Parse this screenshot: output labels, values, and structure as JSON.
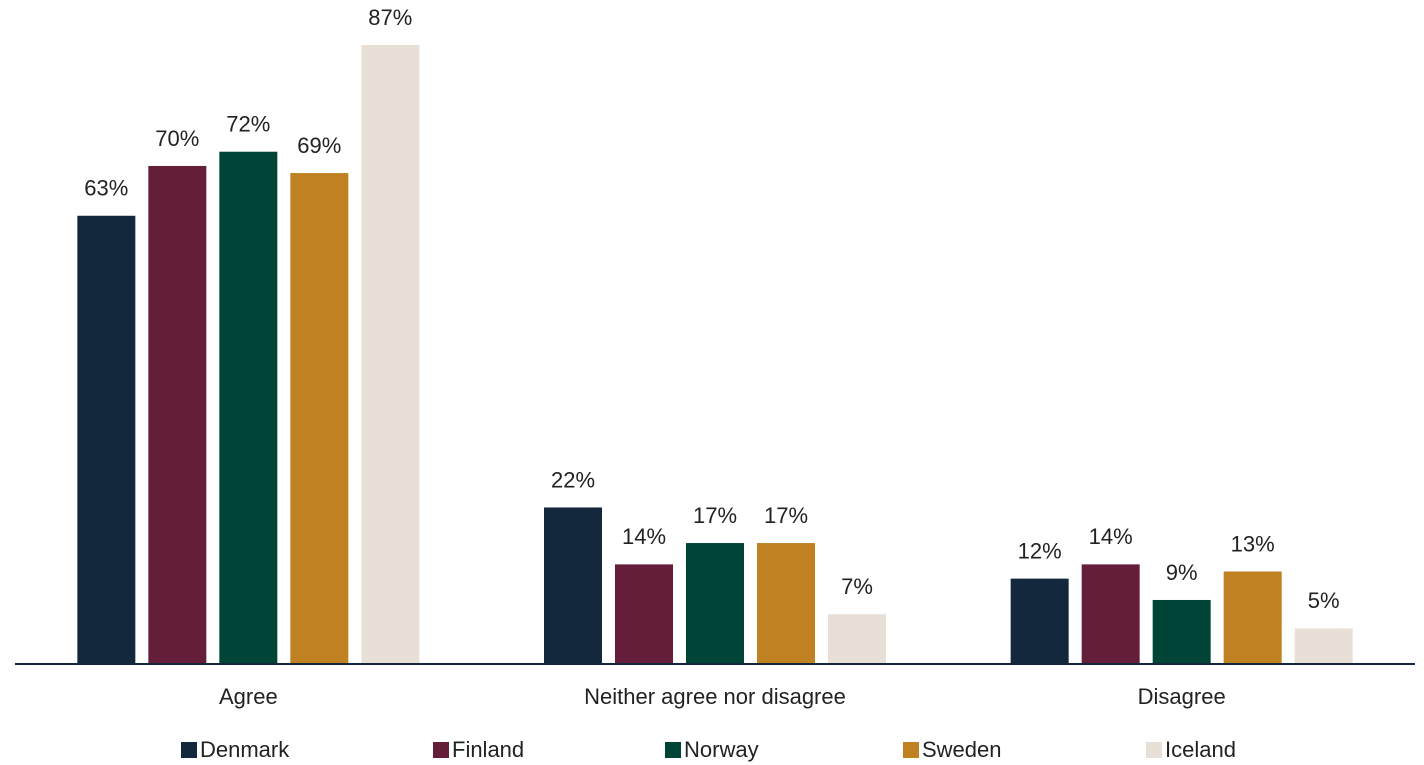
{
  "chart_data": {
    "type": "bar",
    "categories": [
      "Agree",
      "Neither agree nor disagree",
      "Disagree"
    ],
    "series": [
      {
        "name": "Denmark",
        "color": "#13273d",
        "values": [
          63,
          22,
          12
        ],
        "value_labels": [
          "63%",
          "22%",
          "12%"
        ]
      },
      {
        "name": "Finland",
        "color": "#641e3a",
        "values": [
          70,
          14,
          14
        ],
        "value_labels": [
          "70%",
          "14%",
          "14%"
        ]
      },
      {
        "name": "Norway",
        "color": "#004438",
        "values": [
          72,
          17,
          9
        ],
        "value_labels": [
          "72%",
          "17%",
          "9%"
        ]
      },
      {
        "name": "Sweden",
        "color": "#c08122",
        "values": [
          69,
          17,
          13
        ],
        "value_labels": [
          "69%",
          "17%",
          "13%"
        ]
      },
      {
        "name": "Iceland",
        "color": "#e8e0d6",
        "values": [
          87,
          7,
          5
        ],
        "value_labels": [
          "87%",
          "7%",
          "5%"
        ]
      }
    ],
    "legend": "bottom"
  }
}
